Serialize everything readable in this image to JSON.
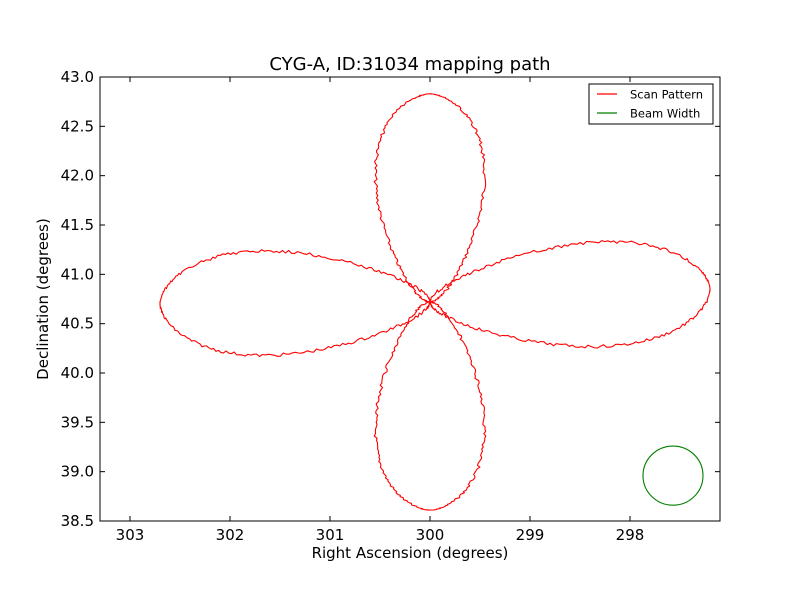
{
  "chart_data": {
    "type": "line",
    "title": "CYG-A, ID:31034 mapping path",
    "xlabel": "Right Ascension (degrees)",
    "ylabel": "Declination (degrees)",
    "xlim": [
      303.3,
      297.1
    ],
    "ylim": [
      38.5,
      43.0
    ],
    "x_inverted": true,
    "xticks": [
      303,
      302,
      301,
      300,
      299,
      298
    ],
    "yticks": [
      38.5,
      39.0,
      39.5,
      40.0,
      40.5,
      41.0,
      41.5,
      42.0,
      42.5,
      43.0
    ],
    "xtick_labels": [
      "303",
      "302",
      "301",
      "300",
      "299",
      "298"
    ],
    "ytick_labels": [
      "38.5",
      "39.0",
      "39.5",
      "40.0",
      "40.5",
      "41.0",
      "41.5",
      "42.0",
      "42.5",
      "43.0"
    ],
    "grid": false,
    "legend_position": "top-right",
    "series": [
      {
        "name": "Scan Pattern",
        "color": "#ff0000",
        "style": "four-petal scan around center",
        "center": [
          300.0,
          40.72
        ],
        "petals": [
          {
            "direction": "north",
            "tip": [
              300.0,
              42.83
            ],
            "half_width_deg": 0.68
          },
          {
            "direction": "south",
            "tip": [
              300.0,
              38.61
            ],
            "half_width_deg": 0.68
          },
          {
            "direction": "east",
            "tip": [
              302.7,
              40.7
            ],
            "half_height_deg": 0.66
          },
          {
            "direction": "west",
            "tip": [
              297.2,
              40.85
            ],
            "half_height_deg": 0.66
          }
        ]
      },
      {
        "name": "Beam Width",
        "color": "#008000",
        "shape": "circle",
        "center": [
          297.57,
          38.96
        ],
        "radius_deg": 0.3
      }
    ]
  }
}
